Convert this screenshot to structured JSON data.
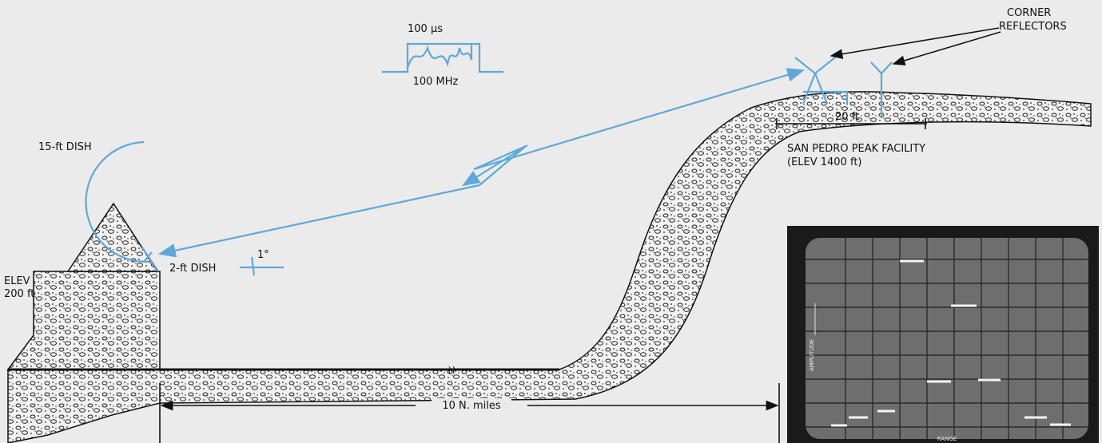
{
  "pulse": {
    "duration": "100 μs",
    "frequency": "100 MHz"
  },
  "labels": {
    "corner_reflectors": [
      "CORNER",
      "REFLECTORS"
    ],
    "dish_15ft": "15-ft DISH",
    "dish_2ft": "2-ft DISH",
    "elevation_site": [
      "ELEV",
      "200 ft"
    ],
    "span": "20 ft",
    "facility": [
      "SAN PEDRO PEAK FACILITY",
      "(ELEV 1400 ft)"
    ],
    "angle": "1°",
    "distance": "10 N. miles"
  },
  "scope": {
    "y_label": "AMPLITUDE",
    "x_label": "RANGE"
  }
}
